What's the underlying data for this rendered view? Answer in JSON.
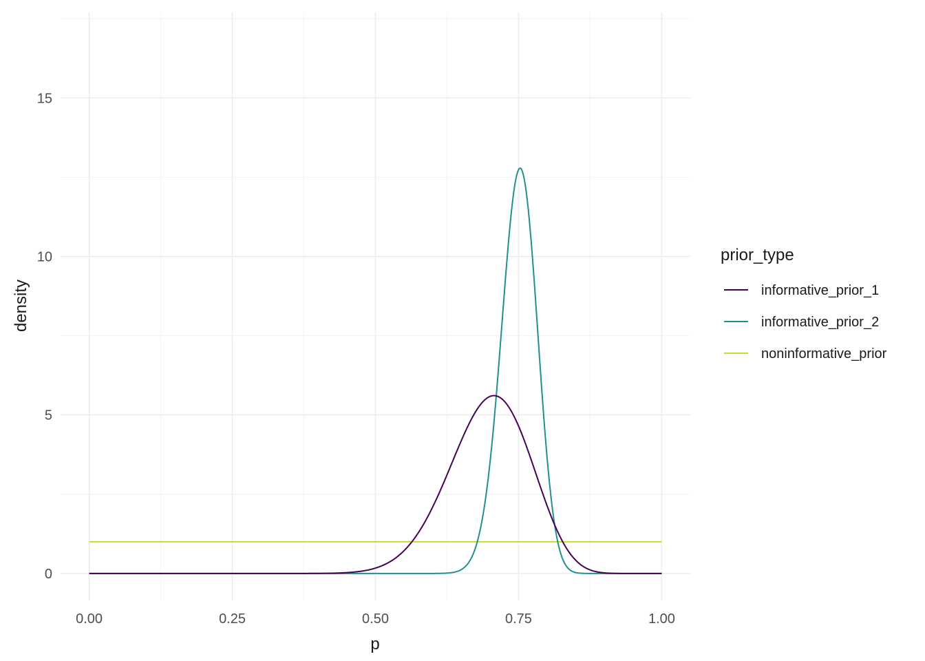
{
  "chart_data": {
    "type": "line",
    "xlabel": "p",
    "ylabel": "density",
    "xlim": [
      -0.05,
      1.05
    ],
    "ylim": [
      -0.85,
      17.7
    ],
    "x_ticks": [
      0.0,
      0.25,
      0.5,
      0.75,
      1.0
    ],
    "x_tick_labels": [
      "0.00",
      "0.25",
      "0.50",
      "0.75",
      "1.00"
    ],
    "y_ticks": [
      0,
      5,
      10,
      15
    ],
    "y_tick_labels": [
      "0",
      "5",
      "10",
      "15"
    ],
    "grid": true,
    "legend": {
      "title": "prior_type",
      "placement": "right"
    },
    "series": [
      {
        "name": "informative_prior_1",
        "color": "#440154",
        "distribution": "beta",
        "alpha": 29,
        "beta": 12.6
      },
      {
        "name": "informative_prior_2",
        "color": "#21908C",
        "distribution": "beta",
        "alpha": 144,
        "beta": 48
      },
      {
        "name": "noninformative_prior",
        "color": "#C7D932",
        "distribution": "beta",
        "alpha": 1,
        "beta": 1
      }
    ]
  }
}
